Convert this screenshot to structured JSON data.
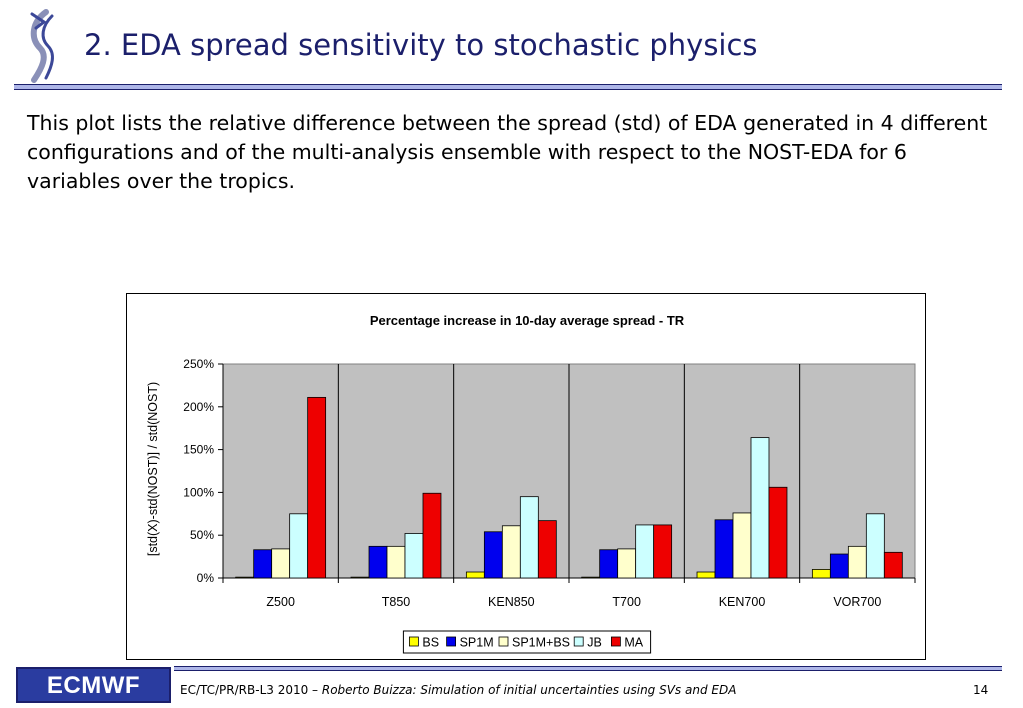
{
  "slide": {
    "title": "2. EDA spread sensitivity to stochastic physics",
    "intro": "This plot lists the relative difference between the spread (std) of EDA generated in 4 different configurations and of the multi-analysis ensemble with respect to the NOST-EDA for 6 variables over the tropics."
  },
  "footer": {
    "logo_text": "ECMWF",
    "ref": "EC/TC/PR/RB-L3 2010 – ",
    "author_title": "Roberto Buizza: Simulation of initial uncertainties using SVs and EDA",
    "page": "14"
  },
  "colors": {
    "title": "#1b1f6b",
    "rule": "#aeb6e8",
    "plot_bg": "#c0c0c0"
  },
  "chart_data": {
    "type": "bar",
    "title": "Percentage increase in 10-day average spread - TR",
    "xlabel": "",
    "ylabel": "[std(X)-std(NOST)] / std(NOST)",
    "ylim": [
      0,
      250
    ],
    "yticks": [
      0,
      50,
      100,
      150,
      200,
      250
    ],
    "ytick_labels": [
      "0%",
      "50%",
      "100%",
      "150%",
      "200%",
      "250%"
    ],
    "categories": [
      "Z500",
      "T850",
      "KEN850",
      "T700",
      "KEN700",
      "VOR700"
    ],
    "series": [
      {
        "name": "BS",
        "color": "#ffff00",
        "values": [
          1,
          1,
          7,
          1,
          7,
          10
        ]
      },
      {
        "name": "SP1M",
        "color": "#0000ee",
        "values": [
          33,
          37,
          54,
          33,
          68,
          28
        ]
      },
      {
        "name": "SP1M+BS",
        "color": "#ffffcc",
        "values": [
          34,
          37,
          61,
          34,
          76,
          37
        ]
      },
      {
        "name": "JB",
        "color": "#ccffff",
        "values": [
          75,
          52,
          95,
          62,
          164,
          75
        ]
      },
      {
        "name": "MA",
        "color": "#ee0000",
        "values": [
          211,
          99,
          67,
          62,
          106,
          30
        ]
      }
    ],
    "grid": "vertical category separators",
    "legend": "bottom-center"
  }
}
